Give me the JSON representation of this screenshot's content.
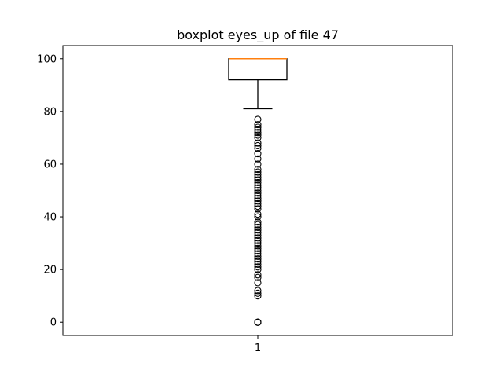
{
  "chart_data": {
    "type": "boxplot",
    "title": "boxplot eyes_up of file 47",
    "xlabel": "",
    "ylabel": "",
    "categories": [
      "1"
    ],
    "ylim": [
      -5,
      105
    ],
    "yticks": [
      0,
      20,
      40,
      60,
      80,
      100
    ],
    "ytick_labels": [
      "0",
      "20",
      "40",
      "60",
      "80",
      "100"
    ],
    "grid": false,
    "colors": {
      "box": "#000000",
      "median": "#ff7f0e",
      "whisker": "#000000",
      "flier": "#000000",
      "background": "#ffffff"
    },
    "boxes": [
      {
        "category": "1",
        "whislo": 81,
        "q1": 92,
        "median": 100,
        "q3": 100,
        "whishi": 100,
        "fliers": [
          0,
          0,
          0,
          10,
          11,
          12,
          15,
          17,
          18,
          20,
          21,
          22,
          23,
          24,
          25,
          26,
          27,
          28,
          29,
          30,
          31,
          32,
          33,
          34,
          35,
          36,
          37,
          38,
          40,
          41,
          43,
          44,
          45,
          46,
          47,
          48,
          49,
          50,
          51,
          52,
          53,
          54,
          55,
          56,
          57,
          58,
          60,
          62,
          64,
          66,
          67,
          68,
          70,
          71,
          72,
          73,
          74,
          75,
          77
        ]
      }
    ]
  }
}
